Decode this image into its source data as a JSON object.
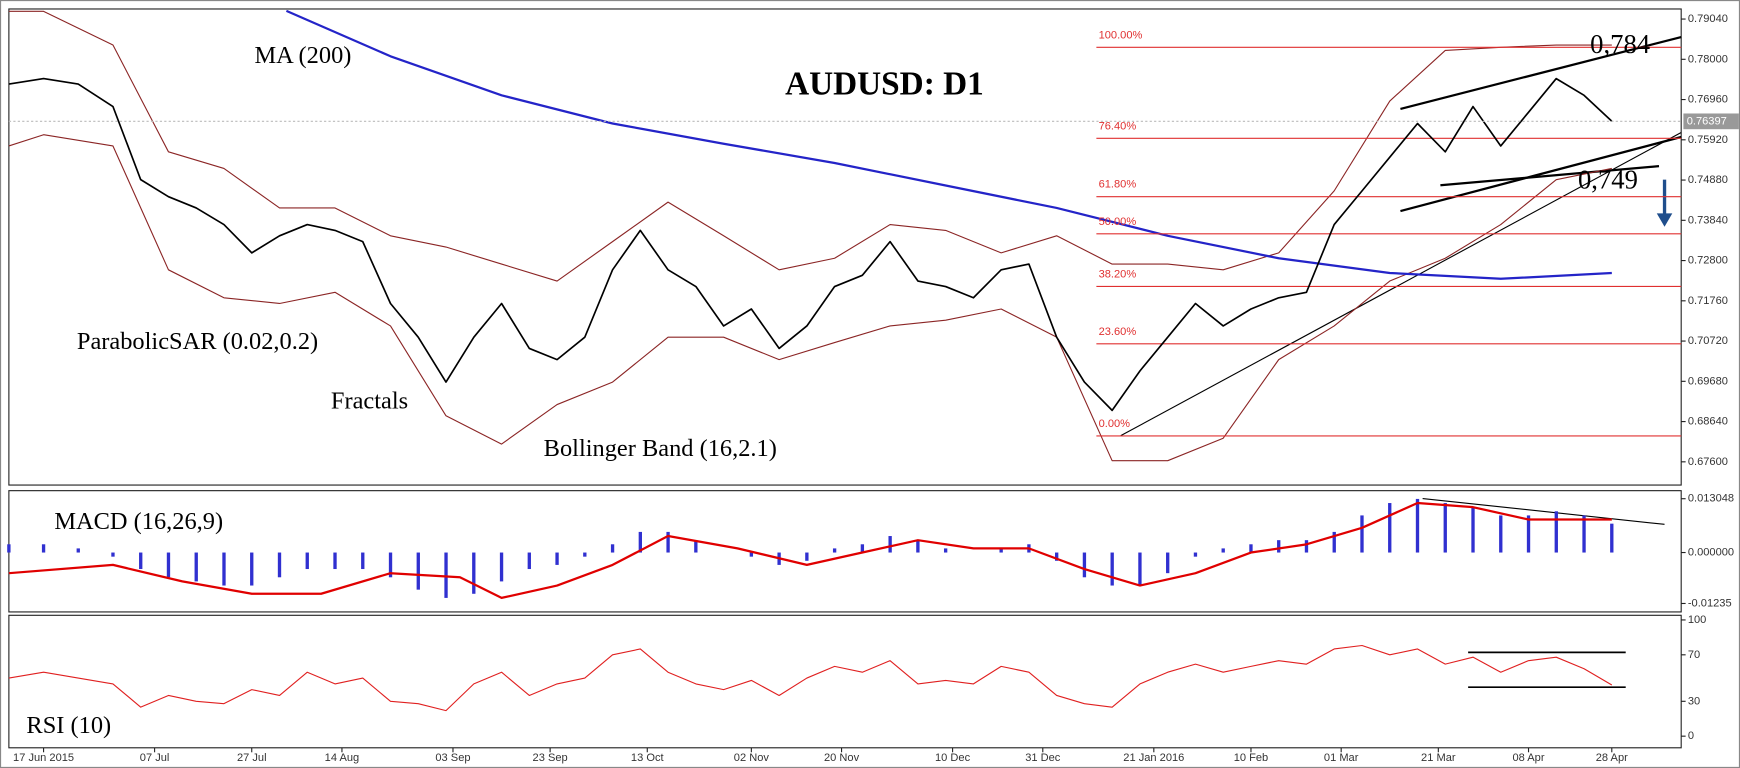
{
  "chart_data": [
    {
      "type": "line",
      "title": "AUDUSD: D1",
      "xlim": [
        -5,
        236
      ],
      "ylim": [
        0.67,
        0.793
      ],
      "yticks": [
        {
          "value": 0.7904,
          "label": "0.79040"
        },
        {
          "value": 0.78,
          "label": "0.78000"
        },
        {
          "value": 0.7696,
          "label": "0.76960"
        },
        {
          "value": 0.7592,
          "label": "0.75920"
        },
        {
          "value": 0.7488,
          "label": "0.74880"
        },
        {
          "value": 0.7384,
          "label": "0.73840"
        },
        {
          "value": 0.728,
          "label": "0.72800"
        },
        {
          "value": 0.7176,
          "label": "0.71760"
        },
        {
          "value": 0.7072,
          "label": "0.70720"
        },
        {
          "value": 0.6968,
          "label": "0.69680"
        },
        {
          "value": 0.6864,
          "label": "0.68640"
        },
        {
          "value": 0.676,
          "label": "0.67600"
        }
      ],
      "x": [
        -5,
        0,
        5,
        10,
        14,
        18,
        22,
        26,
        30,
        34,
        38,
        42,
        46,
        50,
        54,
        58,
        62,
        66,
        70,
        74,
        78,
        82,
        86,
        90,
        94,
        98,
        102,
        106,
        110,
        114,
        118,
        122,
        126,
        130,
        134,
        138,
        142,
        146,
        150,
        154,
        158,
        162,
        166,
        170,
        174,
        178,
        182,
        186,
        190,
        194,
        198,
        202,
        206,
        210,
        214,
        218,
        222,
        226
      ],
      "values": [
        0.7736,
        0.775,
        0.7736,
        0.7678,
        0.7489,
        0.7445,
        0.7416,
        0.7373,
        0.73,
        0.7344,
        0.7373,
        0.7358,
        0.7329,
        0.7169,
        0.7082,
        0.6966,
        0.7082,
        0.7169,
        0.7053,
        0.7024,
        0.7082,
        0.7256,
        0.7358,
        0.7256,
        0.7213,
        0.7111,
        0.7155,
        0.7053,
        0.7111,
        0.7213,
        0.7242,
        0.7329,
        0.7227,
        0.7213,
        0.7184,
        0.7256,
        0.7271,
        0.7082,
        0.6966,
        0.6893,
        0.6995,
        0.7082,
        0.7169,
        0.7111,
        0.7155,
        0.7184,
        0.7198,
        0.7373,
        0.746,
        0.7547,
        0.7634,
        0.7561,
        0.7678,
        0.7576,
        0.7663,
        0.775,
        0.7707,
        0.764
      ],
      "color": "#000000",
      "last_price": 0.76397,
      "ma": {
        "name": "MA (200)",
        "color": "#2424c8",
        "x": [
          35,
          50,
          66,
          82,
          98,
          114,
          130,
          146,
          162,
          178,
          194,
          210,
          226
        ],
        "values": [
          0.7925,
          0.7808,
          0.7707,
          0.7634,
          0.7582,
          0.7532,
          0.7474,
          0.7416,
          0.7344,
          0.7286,
          0.7248,
          0.7233,
          0.7248
        ]
      },
      "bollinger": {
        "name": "Bollinger Band (16,2.1)",
        "color": "#8b2525",
        "x": [
          -5,
          0,
          10,
          18,
          26,
          34,
          42,
          50,
          58,
          66,
          74,
          82,
          90,
          98,
          106,
          114,
          122,
          130,
          138,
          146,
          154,
          162,
          170,
          178,
          186,
          194,
          202,
          210,
          218,
          226
        ],
        "upper": [
          0.7924,
          0.7924,
          0.7837,
          0.7561,
          0.7518,
          0.7416,
          0.7416,
          0.7344,
          0.7315,
          0.7271,
          0.7227,
          0.7329,
          0.7431,
          0.7344,
          0.7256,
          0.7286,
          0.7373,
          0.7358,
          0.73,
          0.7344,
          0.7271,
          0.7271,
          0.7256,
          0.73,
          0.746,
          0.7692,
          0.7823,
          0.7831,
          0.7837,
          0.7837
        ],
        "lower": [
          0.7576,
          0.7605,
          0.7576,
          0.7256,
          0.7184,
          0.7169,
          0.7198,
          0.7111,
          0.6879,
          0.6806,
          0.6908,
          0.6966,
          0.7082,
          0.7082,
          0.7024,
          0.7068,
          0.7111,
          0.7126,
          0.7155,
          0.7082,
          0.6763,
          0.6763,
          0.6821,
          0.7024,
          0.7111,
          0.7227,
          0.7286,
          0.7373,
          0.7489,
          0.7518
        ]
      },
      "fib_color": "#e03030",
      "fibonacci": [
        {
          "label": "100.00%",
          "value": 0.7831
        },
        {
          "label": "76.40%",
          "value": 0.7596
        },
        {
          "label": "61.80%",
          "value": 0.7445
        },
        {
          "label": "50.00%",
          "value": 0.7349
        },
        {
          "label": "38.20%",
          "value": 0.7213
        },
        {
          "label": "23.60%",
          "value": 0.7065
        },
        {
          "label": "0.00%",
          "value": 0.6827
        }
      ],
      "annotations": [
        {
          "value": 0.784,
          "label": "0,784"
        },
        {
          "value": 0.749,
          "label": "0,749"
        }
      ],
      "indicator_labels": [
        "ParabolicSAR (0.02,0.2)",
        "Fractals"
      ]
    },
    {
      "type": "macd",
      "name": "MACD (16,26,9)",
      "xlim": [
        -5,
        236
      ],
      "ylim": [
        -0.0144,
        0.015
      ],
      "yticks": [
        0.013048,
        {
          "value": 0,
          "label": "0.000000"
        },
        -0.01235
      ],
      "x": [
        -5,
        0,
        5,
        10,
        14,
        18,
        22,
        26,
        30,
        34,
        38,
        42,
        46,
        50,
        54,
        58,
        62,
        66,
        70,
        74,
        78,
        82,
        86,
        90,
        94,
        98,
        102,
        106,
        110,
        114,
        118,
        122,
        126,
        130,
        134,
        138,
        142,
        146,
        150,
        154,
        158,
        162,
        166,
        170,
        174,
        178,
        182,
        186,
        190,
        194,
        198,
        202,
        206,
        210,
        214,
        218,
        222,
        226
      ],
      "values": [
        0.002,
        0.002,
        0.001,
        -0.001,
        -0.004,
        -0.006,
        -0.007,
        -0.008,
        -0.008,
        -0.006,
        -0.004,
        -0.004,
        -0.004,
        -0.006,
        -0.009,
        -0.011,
        -0.01,
        -0.007,
        -0.004,
        -0.003,
        -0.001,
        0.002,
        0.005,
        0.005,
        0.003,
        0.0,
        -0.001,
        -0.003,
        -0.002,
        0.001,
        0.002,
        0.004,
        0.003,
        0.001,
        0.0,
        0.001,
        0.002,
        -0.002,
        -0.006,
        -0.008,
        -0.008,
        -0.005,
        -0.001,
        0.001,
        0.002,
        0.003,
        0.003,
        0.005,
        0.009,
        0.012,
        0.013,
        0.012,
        0.011,
        0.009,
        0.009,
        0.01,
        0.009,
        0.007
      ],
      "color": "#3030d0",
      "signal": {
        "color": "#e00000",
        "x": [
          -5,
          10,
          20,
          30,
          40,
          50,
          60,
          66,
          74,
          82,
          90,
          100,
          110,
          118,
          126,
          134,
          142,
          150,
          158,
          166,
          174,
          182,
          190,
          198,
          206,
          214,
          222,
          226
        ],
        "values": [
          -0.005,
          -0.003,
          -0.007,
          -0.01,
          -0.01,
          -0.005,
          -0.006,
          -0.011,
          -0.008,
          -0.003,
          0.004,
          0.001,
          -0.003,
          0.0,
          0.003,
          0.001,
          0.001,
          -0.004,
          -0.008,
          -0.005,
          0.0,
          0.002,
          0.006,
          0.012,
          0.011,
          0.008,
          0.008,
          0.008
        ]
      }
    },
    {
      "type": "rsi",
      "name": "RSI (10)",
      "xlim": [
        -5,
        236
      ],
      "ylim": [
        -10,
        104
      ],
      "yticks": [
        100,
        70,
        30,
        0
      ],
      "x": [
        -5,
        0,
        5,
        10,
        14,
        18,
        22,
        26,
        30,
        34,
        38,
        42,
        46,
        50,
        54,
        58,
        62,
        66,
        70,
        74,
        78,
        82,
        86,
        90,
        94,
        98,
        102,
        106,
        110,
        114,
        118,
        122,
        126,
        130,
        134,
        138,
        142,
        146,
        150,
        154,
        158,
        162,
        166,
        170,
        174,
        178,
        182,
        186,
        190,
        194,
        198,
        202,
        206,
        210,
        214,
        218,
        222,
        226
      ],
      "values": [
        50,
        55,
        50,
        45,
        25,
        35,
        30,
        28,
        40,
        35,
        55,
        45,
        50,
        30,
        28,
        22,
        45,
        55,
        35,
        45,
        50,
        70,
        75,
        55,
        45,
        40,
        48,
        35,
        50,
        60,
        55,
        65,
        45,
        48,
        45,
        60,
        55,
        35,
        28,
        25,
        45,
        55,
        62,
        55,
        60,
        65,
        62,
        75,
        78,
        70,
        75,
        62,
        68,
        55,
        65,
        68,
        58,
        44
      ],
      "color": "#e02020",
      "xticks": [
        {
          "value": 0,
          "label": "17 Jun 2015"
        },
        {
          "value": 16,
          "label": "07 Jul"
        },
        {
          "value": 30,
          "label": "27 Jul"
        },
        {
          "value": 43,
          "label": "14 Aug"
        },
        {
          "value": 59,
          "label": "03 Sep"
        },
        {
          "value": 73,
          "label": "23 Sep"
        },
        {
          "value": 87,
          "label": "13 Oct"
        },
        {
          "value": 102,
          "label": "02 Nov"
        },
        {
          "value": 115,
          "label": "20 Nov"
        },
        {
          "value": 131,
          "label": "10 Dec"
        },
        {
          "value": 144,
          "label": "31 Dec"
        },
        {
          "value": 160,
          "label": "21 Jan 2016"
        },
        {
          "value": 174,
          "label": "10 Feb"
        },
        {
          "value": 187,
          "label": "01 Mar"
        },
        {
          "value": 201,
          "label": "21 Mar"
        },
        {
          "value": 214,
          "label": "08 Apr"
        },
        {
          "value": 226,
          "label": "28 Apr"
        }
      ]
    }
  ]
}
